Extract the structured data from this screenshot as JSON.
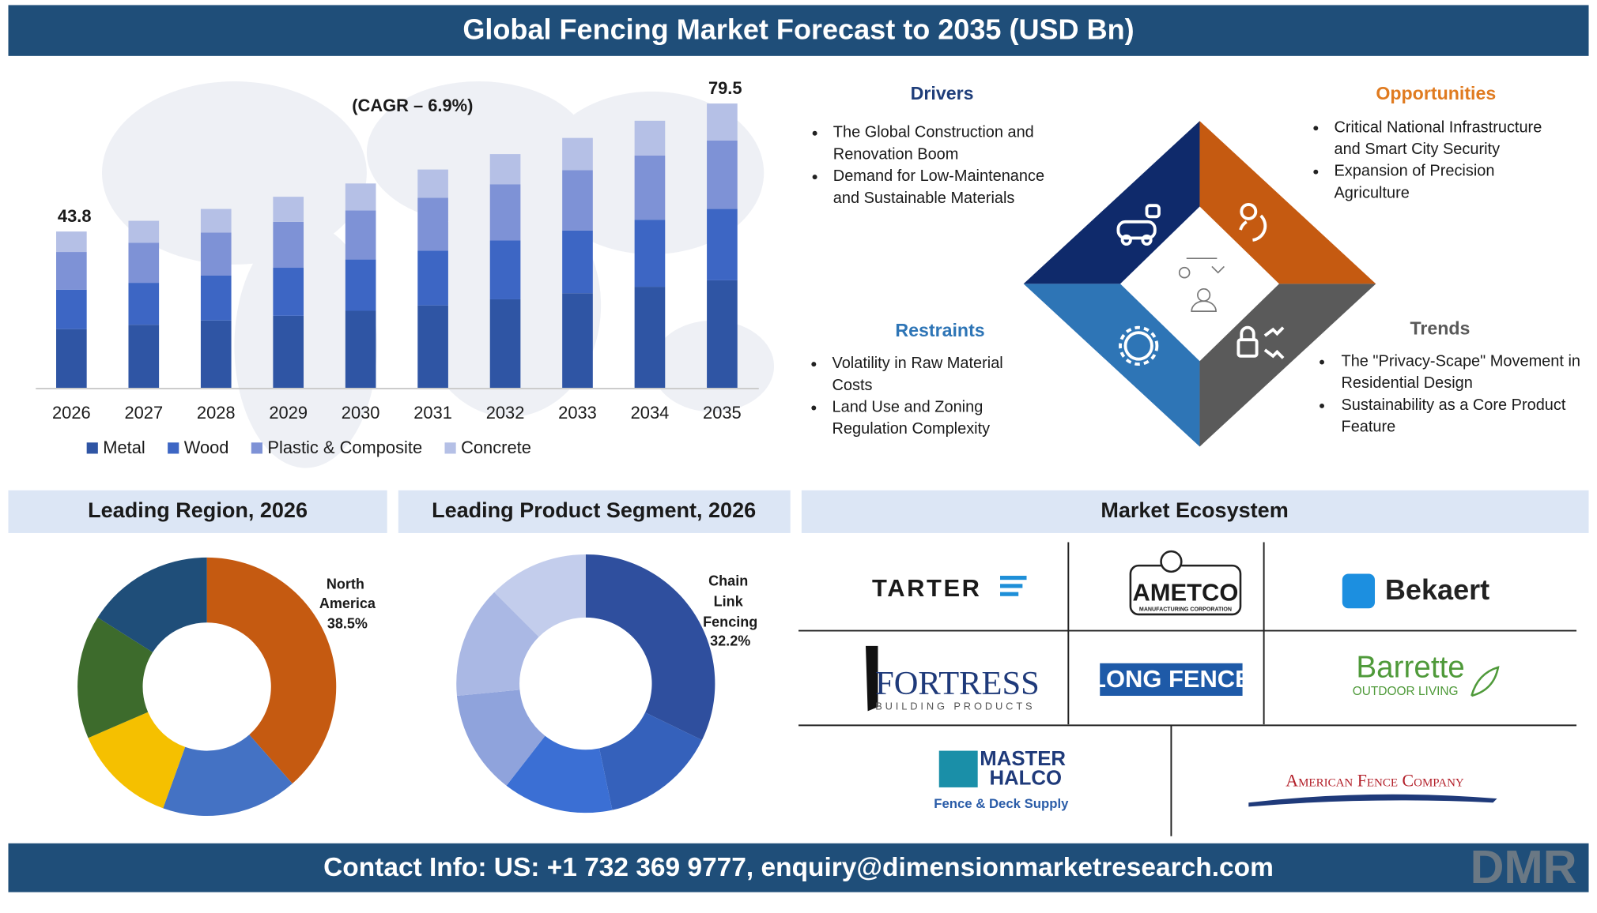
{
  "header": {
    "title": "Global Fencing Market Forecast to 2035 (USD Bn)"
  },
  "chart_data": [
    {
      "type": "bar",
      "stacked": true,
      "annotation": "(CAGR – 6.9%)",
      "categories": [
        "2026",
        "2027",
        "2028",
        "2029",
        "2030",
        "2031",
        "2032",
        "2033",
        "2034",
        "2035"
      ],
      "series": [
        {
          "name": "Metal",
          "color": "#2f55a4",
          "values": [
            16.6,
            17.8,
            19.0,
            20.3,
            21.7,
            23.2,
            24.9,
            26.6,
            28.4,
            30.2
          ]
        },
        {
          "name": "Wood",
          "color": "#3d66c4",
          "values": [
            11.0,
            11.7,
            12.5,
            13.4,
            14.3,
            15.3,
            16.4,
            17.5,
            18.7,
            19.9
          ]
        },
        {
          "name": "Plastic & Composite",
          "color": "#7e92d6",
          "values": [
            10.5,
            11.2,
            12.0,
            12.8,
            13.7,
            14.7,
            15.7,
            16.8,
            17.9,
            19.1
          ]
        },
        {
          "name": "Concrete",
          "color": "#b5c0e6",
          "values": [
            5.7,
            6.1,
            6.6,
            7.0,
            7.5,
            7.9,
            8.4,
            9.0,
            9.7,
            10.3
          ]
        }
      ],
      "totals": [
        43.8,
        null,
        null,
        null,
        null,
        null,
        null,
        null,
        null,
        79.5
      ],
      "ylim": [
        0,
        80
      ]
    },
    {
      "type": "donut",
      "title": "Leading Region, 2026",
      "categories": [
        "North America",
        null,
        null,
        null,
        null
      ],
      "values": [
        38.5,
        17,
        13,
        15.5,
        16
      ],
      "value_labels": [
        "38.5%",
        null,
        null,
        null,
        null
      ],
      "colors": [
        "#c55a11",
        "#4472c4",
        "#f5c000",
        "#3d6b2c",
        "#1f4e79"
      ]
    },
    {
      "type": "donut",
      "title": "Leading Product Segment, 2026",
      "categories": [
        "Chain Link Fencing",
        null,
        null,
        null,
        null,
        null
      ],
      "values": [
        32.2,
        14.5,
        13.8,
        13.0,
        14.0,
        12.5
      ],
      "value_labels": [
        "32.2%",
        null,
        null,
        null,
        null,
        null
      ],
      "colors": [
        "#2f4f9e",
        "#3561bb",
        "#3b6fd4",
        "#8fa3dc",
        "#aab8e4",
        "#c3cdec"
      ]
    }
  ],
  "quadrants": {
    "drivers": {
      "title": "Drivers",
      "items": [
        "The Global Construction and Renovation Boom",
        "Demand for Low-Maintenance and Sustainable Materials"
      ]
    },
    "opportunities": {
      "title": "Opportunities",
      "items": [
        "Critical National Infrastructure and Smart City Security",
        "Expansion of Precision Agriculture"
      ]
    },
    "restraints": {
      "title": "Restraints",
      "items": [
        "Volatility in Raw Material Costs",
        "Land Use and Zoning Regulation Complexity"
      ]
    },
    "trends": {
      "title": "Trends",
      "items": [
        "The \"Privacy-Scape\" Movement in Residential Design",
        "Sustainability as a Core Product Feature"
      ]
    }
  },
  "ecosystem": {
    "title": "Market Ecosystem",
    "companies": [
      {
        "name": "TARTER"
      },
      {
        "name": "AMETCO",
        "tagline": "MANUFACTURING CORPORATION"
      },
      {
        "name": "Bekaert"
      },
      {
        "name": "FORTRESS",
        "tagline": "BUILDING PRODUCTS"
      },
      {
        "name": "LONG FENCE"
      },
      {
        "name": "Barrette",
        "tagline": "OUTDOOR LIVING"
      },
      {
        "name": "MASTER HALCO",
        "tagline": "Fence & Deck Supply"
      },
      {
        "name": "American Fence Company"
      }
    ]
  },
  "footer": {
    "contact": "Contact Info: US: +1 732 369 9777, enquiry@dimensionmarketresearch.com",
    "logo": "DMR"
  }
}
